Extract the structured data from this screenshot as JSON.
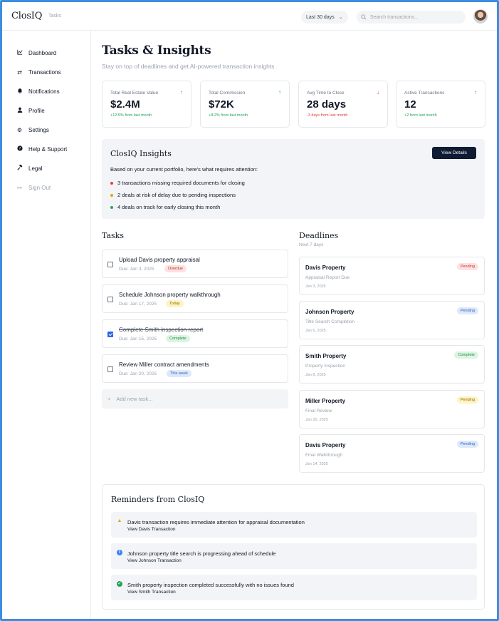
{
  "header": {
    "logo": "ClosIQ",
    "breadcrumb": "Tasks",
    "range_label": "Last 30 days",
    "search_placeholder": "Search transactions..."
  },
  "sidebar": {
    "items": [
      {
        "label": "Dashboard",
        "icon": "chart-line-icon"
      },
      {
        "label": "Transactions",
        "icon": "swap-arrows-icon"
      },
      {
        "label": "Notifications",
        "icon": "bell-icon"
      },
      {
        "label": "Profile",
        "icon": "user-icon"
      },
      {
        "label": "Settings",
        "icon": "gear-icon"
      },
      {
        "label": "Help & Support",
        "icon": "question-circle-icon"
      },
      {
        "label": "Legal",
        "icon": "gavel-icon"
      },
      {
        "label": "Sign Out",
        "icon": "sign-out-icon"
      }
    ]
  },
  "page": {
    "title": "Tasks & Insights",
    "subtitle": "Stay on top of deadlines and get AI-powered transaction insights"
  },
  "kpis": [
    {
      "label": "Total Real Estate Value",
      "value": "$2.4M",
      "change": "+12.5% from last month",
      "trend": "up"
    },
    {
      "label": "Total Commission",
      "value": "$72K",
      "change": "+8.2% from last month",
      "trend": "up"
    },
    {
      "label": "Avg Time to Close",
      "value": "28 days",
      "change": "-3 days from last month",
      "trend": "down"
    },
    {
      "label": "Active Transactions",
      "value": "12",
      "change": "+2 from last month",
      "trend": "up"
    }
  ],
  "insights": {
    "title": "ClosIQ Insights",
    "button": "View Details",
    "intro": "Based on your current portfolio, here's what requires attention:",
    "items": [
      {
        "text": "3 transactions missing required documents for closing",
        "color": "#e53e3e"
      },
      {
        "text": "2 deals at risk of delay due to pending inspections",
        "color": "#e0a800"
      },
      {
        "text": "4 deals on track for early closing this month",
        "color": "#22a55b"
      }
    ]
  },
  "tasks": {
    "title": "Tasks",
    "items": [
      {
        "title": "Upload Davis property appraisal",
        "due": "Due: Jan 3, 2025",
        "badge": "Overdue",
        "checked": false
      },
      {
        "title": "Schedule Johnson property walkthrough",
        "due": "Due: Jan 17, 2025",
        "badge": "Today",
        "checked": false
      },
      {
        "title": "Complete Smith inspection report",
        "due": "Due: Jan 15, 2025",
        "badge": "Complete",
        "checked": true
      },
      {
        "title": "Review Miller contract amendments",
        "due": "Due: Jan 20, 2025",
        "badge": "This week",
        "checked": false
      }
    ],
    "add_placeholder": "Add new task..."
  },
  "deadlines": {
    "title": "Deadlines",
    "subtitle": "Next 7 days",
    "items": [
      {
        "name": "Davis Property",
        "task": "Appraisal Report Due",
        "date": "Jan 3, 2025",
        "status": "Pending"
      },
      {
        "name": "Johnson Property",
        "task": "Title Search Completion",
        "date": "Jan 6, 2025",
        "status": "Pending"
      },
      {
        "name": "Smith Property",
        "task": "Property Inspection",
        "date": "Jan 8, 2025",
        "status": "Complete"
      },
      {
        "name": "Miller Property",
        "task": "Final Review",
        "date": "Jan 20, 2025",
        "status": "Pending"
      },
      {
        "name": "Davis Property",
        "task": "Final Walkthrough",
        "date": "Jan 14, 2025",
        "status": "Pending"
      }
    ]
  },
  "reminders": {
    "title": "Reminders from ClosIQ",
    "items": [
      {
        "text": "Davis transaction requires immediate attention for appraisal documentation",
        "link": "View Davis Transaction",
        "icon": "warning-icon"
      },
      {
        "text": "Johnson property title search is progressing ahead of schedule",
        "link": "View Johnson Transaction",
        "icon": "info-icon"
      },
      {
        "text": "Smith property inspection completed successfully with no issues found",
        "link": "View Smith Transaction",
        "icon": "check-circle-icon"
      }
    ]
  }
}
